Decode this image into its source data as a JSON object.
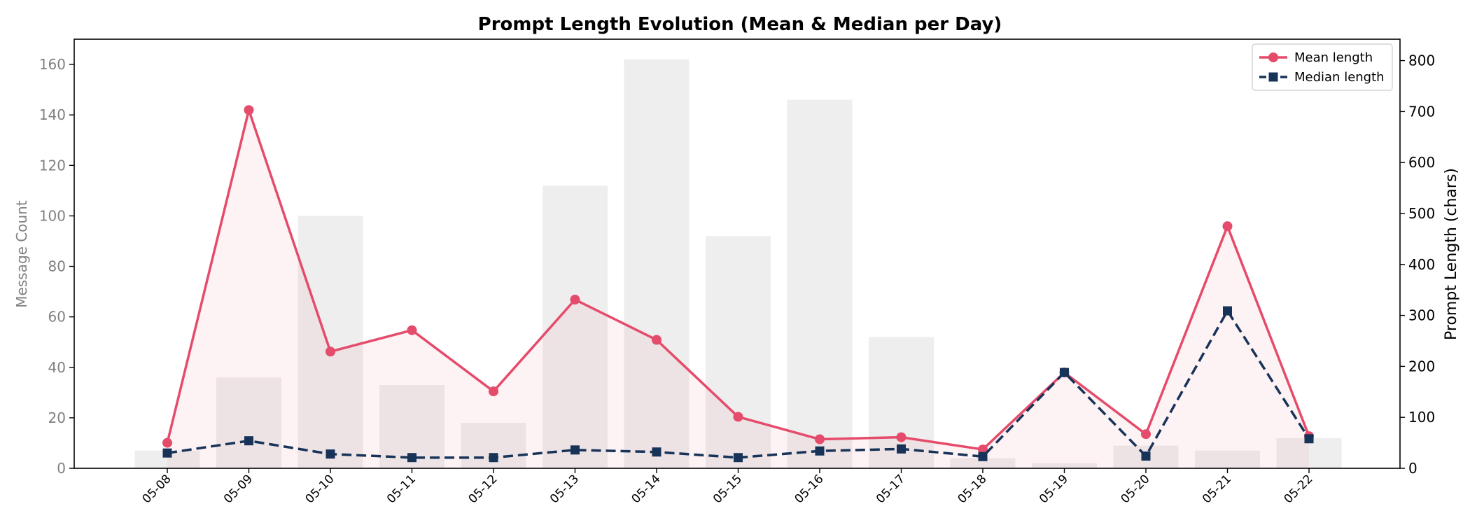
{
  "chart_data": {
    "type": "bar",
    "title": "Prompt Length Evolution (Mean & Median per Day)",
    "ylabel_left": "Message Count",
    "ylabel_right": "Prompt Length (chars)",
    "xlabel": "",
    "categories": [
      "05-08",
      "05-09",
      "05-10",
      "05-11",
      "05-12",
      "05-13",
      "05-14",
      "05-15",
      "05-16",
      "05-17",
      "05-18",
      "05-19",
      "05-20",
      "05-21",
      "05-22"
    ],
    "bar_series": {
      "name": "",
      "values": [
        7,
        36,
        100,
        33,
        18,
        112,
        162,
        92,
        146,
        52,
        4,
        2,
        9,
        7,
        12
      ],
      "color": "#d9d9d9"
    },
    "series": [
      {
        "name": "Mean length",
        "values": [
          50,
          703,
          229,
          271,
          151,
          331,
          252,
          101,
          57,
          61,
          37,
          188,
          67,
          475,
          63
        ],
        "color": "#e54b6a",
        "style": "solid",
        "marker": "circle"
      },
      {
        "name": "Median length",
        "values": [
          30,
          54,
          28,
          21,
          21,
          36,
          32,
          21,
          34,
          38,
          23,
          188,
          24,
          309,
          58
        ],
        "color": "#173358",
        "style": "dashed",
        "marker": "square"
      }
    ],
    "ylim_left": [
      0,
      170
    ],
    "ylim_right": [
      0,
      842
    ],
    "yticks_left": [
      0,
      20,
      40,
      60,
      80,
      100,
      120,
      140,
      160
    ],
    "yticks_right": [
      0,
      100,
      200,
      300,
      400,
      500,
      600,
      700,
      800
    ],
    "legend_position": "top-right",
    "grid": false
  }
}
